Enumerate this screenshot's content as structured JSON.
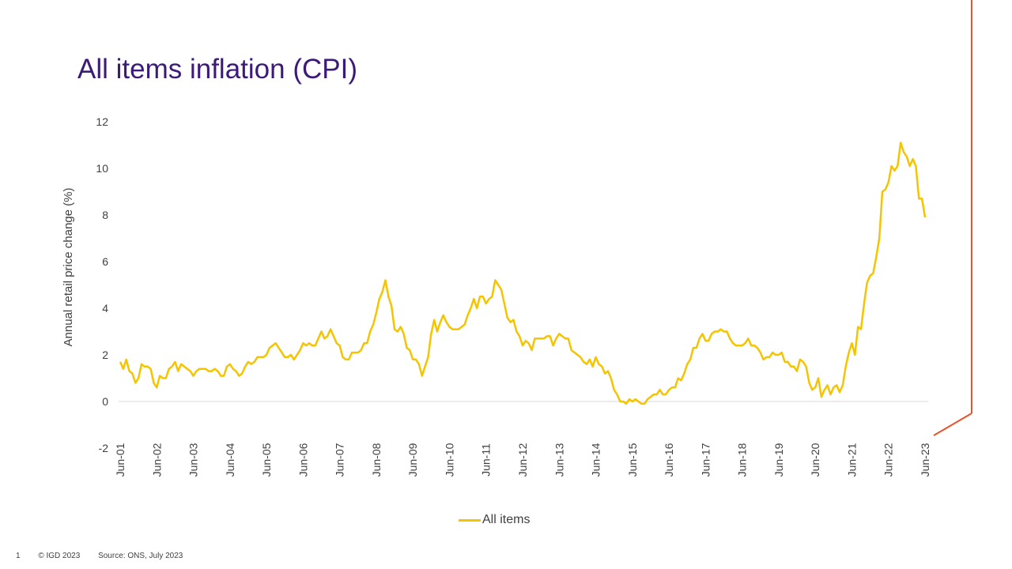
{
  "title": "All items inflation (CPI)",
  "footer": {
    "page": "1",
    "copyright": "© IGD 2023",
    "source": "Source: ONS, July 2023"
  },
  "colors": {
    "series": "#f5c400",
    "title": "#3c1a78",
    "accent_line": "#e8532b"
  },
  "chart_data": {
    "type": "line",
    "title": "All items inflation (CPI)",
    "ylabel": "Annual retail price change (%)",
    "xlabel": "",
    "ylim": [
      -2,
      12
    ],
    "yticks": [
      -2,
      0,
      2,
      4,
      6,
      8,
      10,
      12
    ],
    "xticks": [
      "Jun-01",
      "Jun-02",
      "Jun-03",
      "Jun-04",
      "Jun-05",
      "Jun-06",
      "Jun-07",
      "Jun-08",
      "Jun-09",
      "Jun-10",
      "Jun-11",
      "Jun-12",
      "Jun-13",
      "Jun-14",
      "Jun-15",
      "Jun-16",
      "Jun-17",
      "Jun-18",
      "Jun-19",
      "Jun-20",
      "Jun-21",
      "Jun-22",
      "Jun-23"
    ],
    "grid": false,
    "legend": "bottom",
    "series": [
      {
        "name": "All items",
        "values": [
          1.7,
          1.4,
          1.8,
          1.3,
          1.2,
          0.8,
          1.0,
          1.6,
          1.5,
          1.5,
          1.4,
          0.8,
          0.6,
          1.1,
          1.0,
          1.0,
          1.4,
          1.5,
          1.7,
          1.3,
          1.6,
          1.5,
          1.4,
          1.3,
          1.1,
          1.3,
          1.4,
          1.4,
          1.4,
          1.3,
          1.3,
          1.4,
          1.3,
          1.1,
          1.1,
          1.5,
          1.6,
          1.4,
          1.3,
          1.1,
          1.2,
          1.5,
          1.7,
          1.6,
          1.7,
          1.9,
          1.9,
          1.9,
          2.0,
          2.3,
          2.4,
          2.5,
          2.3,
          2.1,
          1.9,
          1.9,
          2.0,
          1.8,
          2.0,
          2.2,
          2.5,
          2.4,
          2.5,
          2.4,
          2.4,
          2.7,
          3.0,
          2.7,
          2.8,
          3.1,
          2.8,
          2.5,
          2.4,
          1.9,
          1.8,
          1.8,
          2.1,
          2.1,
          2.1,
          2.2,
          2.5,
          2.5,
          3.0,
          3.3,
          3.8,
          4.4,
          4.7,
          5.2,
          4.5,
          4.1,
          3.1,
          3.0,
          3.2,
          2.9,
          2.3,
          2.2,
          1.8,
          1.8,
          1.6,
          1.1,
          1.5,
          1.9,
          2.9,
          3.5,
          3.0,
          3.4,
          3.7,
          3.4,
          3.2,
          3.1,
          3.1,
          3.1,
          3.2,
          3.3,
          3.7,
          4.0,
          4.4,
          4.0,
          4.5,
          4.5,
          4.2,
          4.4,
          4.5,
          5.2,
          5.0,
          4.8,
          4.2,
          3.6,
          3.4,
          3.5,
          3.0,
          2.8,
          2.4,
          2.6,
          2.5,
          2.2,
          2.7,
          2.7,
          2.7,
          2.7,
          2.8,
          2.8,
          2.4,
          2.7,
          2.9,
          2.8,
          2.7,
          2.7,
          2.2,
          2.1,
          2.0,
          1.9,
          1.7,
          1.6,
          1.8,
          1.5,
          1.9,
          1.6,
          1.5,
          1.2,
          1.3,
          1.0,
          0.5,
          0.3,
          0.0,
          0.0,
          -0.1,
          0.1,
          0.0,
          0.1,
          0.0,
          -0.1,
          -0.1,
          0.1,
          0.2,
          0.3,
          0.3,
          0.5,
          0.3,
          0.3,
          0.5,
          0.6,
          0.6,
          1.0,
          0.9,
          1.2,
          1.6,
          1.8,
          2.3,
          2.3,
          2.7,
          2.9,
          2.6,
          2.6,
          2.9,
          3.0,
          3.0,
          3.1,
          3.0,
          3.0,
          2.7,
          2.5,
          2.4,
          2.4,
          2.4,
          2.5,
          2.7,
          2.4,
          2.4,
          2.3,
          2.1,
          1.8,
          1.9,
          1.9,
          2.1,
          2.0,
          2.0,
          2.1,
          1.7,
          1.7,
          1.5,
          1.5,
          1.3,
          1.8,
          1.7,
          1.5,
          0.8,
          0.5,
          0.6,
          1.0,
          0.2,
          0.5,
          0.7,
          0.3,
          0.6,
          0.7,
          0.4,
          0.7,
          1.5,
          2.1,
          2.5,
          2.0,
          3.2,
          3.1,
          4.2,
          5.1,
          5.4,
          5.5,
          6.2,
          7.0,
          9.0,
          9.1,
          9.4,
          10.1,
          9.9,
          10.1,
          11.1,
          10.7,
          10.5,
          10.1,
          10.4,
          10.1,
          8.7,
          8.7,
          7.9
        ]
      }
    ]
  }
}
